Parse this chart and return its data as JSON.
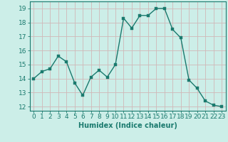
{
  "x": [
    0,
    1,
    2,
    3,
    4,
    5,
    6,
    7,
    8,
    9,
    10,
    11,
    12,
    13,
    14,
    15,
    16,
    17,
    18,
    19,
    20,
    21,
    22,
    23
  ],
  "y": [
    14.0,
    14.5,
    14.7,
    15.6,
    15.2,
    13.7,
    12.8,
    14.1,
    14.6,
    14.1,
    15.0,
    18.3,
    17.6,
    18.5,
    18.5,
    19.0,
    19.0,
    17.5,
    16.9,
    13.9,
    13.3,
    12.4,
    12.1,
    12.0
  ],
  "line_color": "#1a7a6e",
  "marker_color": "#1a7a6e",
  "bg_color": "#cceee8",
  "grid_color": "#d0b8b8",
  "xlabel": "Humidex (Indice chaleur)",
  "ylim": [
    11.7,
    19.5
  ],
  "xlim": [
    -0.5,
    23.5
  ],
  "yticks": [
    12,
    13,
    14,
    15,
    16,
    17,
    18,
    19
  ],
  "xticks": [
    0,
    1,
    2,
    3,
    4,
    5,
    6,
    7,
    8,
    9,
    10,
    11,
    12,
    13,
    14,
    15,
    16,
    17,
    18,
    19,
    20,
    21,
    22,
    23
  ],
  "xlabel_fontsize": 7,
  "tick_fontsize": 6.5,
  "line_width": 1.0,
  "marker_size": 2.5
}
